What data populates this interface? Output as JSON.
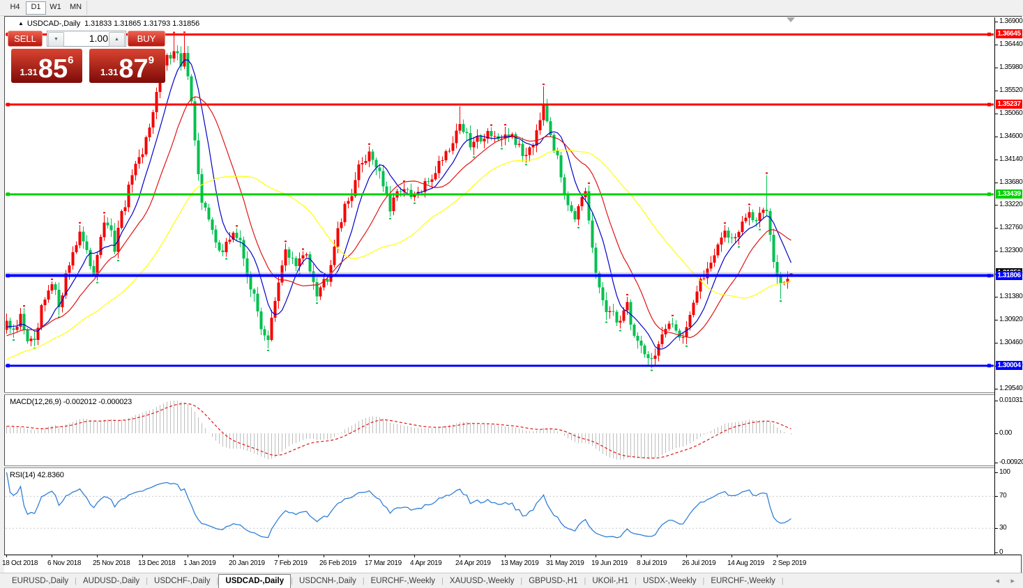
{
  "toolbar": {
    "timeframes": [
      {
        "label": "H4",
        "active": false
      },
      {
        "label": "D1",
        "active": true
      },
      {
        "label": "W1",
        "active": false
      },
      {
        "label": "MN",
        "active": false
      }
    ]
  },
  "chart_header": {
    "collapse_icon": "▲",
    "symbol_period": "USDCAD-,Daily",
    "ohlc_text": "1.31833 1.31865 1.31793 1.31856"
  },
  "trade_panel": {
    "sell_label": "SELL",
    "buy_label": "BUY",
    "volume": "1.00",
    "sell_price": {
      "small": "1.31",
      "big": "85",
      "sup": "6"
    },
    "buy_price": {
      "small": "1.31",
      "big": "87",
      "sup": "9"
    }
  },
  "macd_panel": {
    "label": "MACD(12,26,9) -0.002012 -0.000023",
    "axis_labels": [
      "0.010311",
      "0.00",
      "-0.009203"
    ]
  },
  "rsi_panel": {
    "label": "RSI(14) 42.8360",
    "axis_labels": [
      "100",
      "70",
      "30",
      "0"
    ]
  },
  "tabs": {
    "items": [
      {
        "label": "EURUSD-,Daily",
        "active": false
      },
      {
        "label": "AUDUSD-,Daily",
        "active": false
      },
      {
        "label": "USDCHF-,Daily",
        "active": false
      },
      {
        "label": "USDCAD-,Daily",
        "active": true
      },
      {
        "label": "USDCNH-,Daily",
        "active": false
      },
      {
        "label": "EURCHF-,Weekly",
        "active": false
      },
      {
        "label": "XAUUSD-,Weekly",
        "active": false
      },
      {
        "label": "GBPUSD-,H1",
        "active": false
      },
      {
        "label": "UKOil-,H1",
        "active": false
      },
      {
        "label": "USDX-,Weekly",
        "active": false
      },
      {
        "label": "EURCHF-,Weekly",
        "active": false
      }
    ],
    "scroll_left_icon": "◂",
    "scroll_right_icon": "▸"
  },
  "chart_data": {
    "type": "candlestick",
    "symbol": "USDCAD-,Daily",
    "current_bar": {
      "open": 1.31833,
      "high": 1.31865,
      "low": 1.31793,
      "close": 1.31856
    },
    "bid": 1.31856,
    "ask": 1.31879,
    "bars": 226,
    "up_color": "#f40000",
    "down_color": "#00c050",
    "close_keypoints": [
      [
        0,
        1.309
      ],
      [
        2,
        1.306
      ],
      [
        4,
        1.3098
      ],
      [
        6,
        1.3055
      ],
      [
        8,
        1.304
      ],
      [
        10,
        1.311
      ],
      [
        13,
        1.316
      ],
      [
        15,
        1.3125
      ],
      [
        17,
        1.318
      ],
      [
        19,
        1.323
      ],
      [
        21,
        1.327
      ],
      [
        23,
        1.322
      ],
      [
        25,
        1.319
      ],
      [
        27,
        1.3265
      ],
      [
        29,
        1.3285
      ],
      [
        31,
        1.3235
      ],
      [
        33,
        1.33
      ],
      [
        36,
        1.338
      ],
      [
        39,
        1.342
      ],
      [
        42,
        1.352
      ],
      [
        45,
        1.36
      ],
      [
        48,
        1.364
      ],
      [
        50,
        1.3605
      ],
      [
        51,
        1.3625
      ],
      [
        53,
        1.352
      ],
      [
        56,
        1.333
      ],
      [
        59,
        1.327
      ],
      [
        62,
        1.3225
      ],
      [
        65,
        1.327
      ],
      [
        67,
        1.3245
      ],
      [
        70,
        1.316
      ],
      [
        73,
        1.308
      ],
      [
        75,
        1.3055
      ],
      [
        78,
        1.316
      ],
      [
        80,
        1.3235
      ],
      [
        83,
        1.32
      ],
      [
        86,
        1.3225
      ],
      [
        89,
        1.315
      ],
      [
        92,
        1.318
      ],
      [
        95,
        1.328
      ],
      [
        98,
        1.333
      ],
      [
        101,
        1.3395
      ],
      [
        104,
        1.343
      ],
      [
        107,
        1.339
      ],
      [
        110,
        1.331
      ],
      [
        113,
        1.336
      ],
      [
        116,
        1.3335
      ],
      [
        119,
        1.335
      ],
      [
        122,
        1.338
      ],
      [
        125,
        1.342
      ],
      [
        128,
        1.345
      ],
      [
        130,
        1.349
      ],
      [
        133,
        1.344
      ],
      [
        136,
        1.346
      ],
      [
        139,
        1.347
      ],
      [
        142,
        1.3445
      ],
      [
        145,
        1.3465
      ],
      [
        148,
        1.342
      ],
      [
        151,
        1.345
      ],
      [
        154,
        1.353
      ],
      [
        155,
        1.35
      ],
      [
        157,
        1.344
      ],
      [
        160,
        1.335
      ],
      [
        163,
        1.33
      ],
      [
        166,
        1.334
      ],
      [
        169,
        1.318
      ],
      [
        172,
        1.311
      ],
      [
        175,
        1.309
      ],
      [
        178,
        1.312
      ],
      [
        180,
        1.306
      ],
      [
        183,
        1.303
      ],
      [
        185,
        1.301
      ],
      [
        188,
        1.306
      ],
      [
        191,
        1.308
      ],
      [
        194,
        1.306
      ],
      [
        197,
        1.313
      ],
      [
        200,
        1.318
      ],
      [
        203,
        1.323
      ],
      [
        206,
        1.327
      ],
      [
        209,
        1.325
      ],
      [
        212,
        1.33
      ],
      [
        215,
        1.329
      ],
      [
        218,
        1.332
      ],
      [
        220,
        1.322
      ],
      [
        222,
        1.316
      ],
      [
        224,
        1.3175
      ],
      [
        225,
        1.31856
      ]
    ],
    "wick_overrides": {
      "48": {
        "h": 1.3664
      },
      "51": {
        "h": 1.36645
      },
      "75": {
        "l": 1.3035
      },
      "130": {
        "h": 1.352
      },
      "154": {
        "h": 1.356
      },
      "185": {
        "l": 1.2995
      },
      "218": {
        "h": 1.3382
      },
      "222": {
        "l": 1.3134
      },
      "225": {
        "h": 1.31865,
        "l": 1.31793
      }
    },
    "moving_averages": [
      {
        "period": 8,
        "color": "#0000c8"
      },
      {
        "period": 18,
        "color": "#e01414"
      },
      {
        "period": 45,
        "color": "#ffff00"
      }
    ],
    "hlines": [
      {
        "value": 1.36645,
        "label": "1.36645",
        "color": "#ff0000",
        "width": 3
      },
      {
        "value": 1.35237,
        "label": "1.35237",
        "color": "#ff0000",
        "width": 3
      },
      {
        "value": 1.33439,
        "label": "1.33439",
        "color": "#00d000",
        "width": 3
      },
      {
        "value": 1.31806,
        "label": "1.31806",
        "color": "#0000ff",
        "width": 4
      },
      {
        "value": 1.30004,
        "label": "1.30004",
        "color": "#0000ff",
        "width": 3
      }
    ],
    "bid_line": {
      "value": 1.31856,
      "label": "1.31856",
      "color": "#b4b4b4",
      "width": 1,
      "badge_bg": "#000000"
    },
    "macd": {
      "fast": 12,
      "slow": 26,
      "signal": 9,
      "value": -0.002012,
      "signal_value": -2.3e-05,
      "hist_color": "#bdbdbd",
      "signal_color": "#e01414",
      "axis_max": 0.010311,
      "axis_min": -0.009203
    },
    "rsi": {
      "period": 14,
      "value": 42.836,
      "color": "#2f7fd7",
      "levels": [
        70,
        30
      ],
      "level_color": "#c8c8c8"
    },
    "price_axis": {
      "ticks": [
        "1.36900",
        "1.36440",
        "1.35980",
        "1.35520",
        "1.35060",
        "1.34600",
        "1.34140",
        "1.33680",
        "1.33220",
        "1.32760",
        "1.32300",
        "1.31840",
        "1.31380",
        "1.30920",
        "1.30460",
        "1.30000",
        "1.29540"
      ],
      "top_value": 1.369,
      "step": 0.0046
    },
    "x_ticks": {
      "step_bars": 13,
      "labels": [
        "18 Oct 2018",
        "6 Nov 2018",
        "25 Nov 2018",
        "13 Dec 2018",
        "1 Jan 2019",
        "20 Jan 2019",
        "7 Feb 2019",
        "26 Feb 2019",
        "17 Mar 2019",
        "4 Apr 2019",
        "24 Apr 2019",
        "13 May 2019",
        "31 May 2019",
        "19 Jun 2019",
        "8 Jul 2019",
        "26 Jul 2019",
        "14 Aug 2019",
        "2 Sep 2019"
      ]
    }
  }
}
